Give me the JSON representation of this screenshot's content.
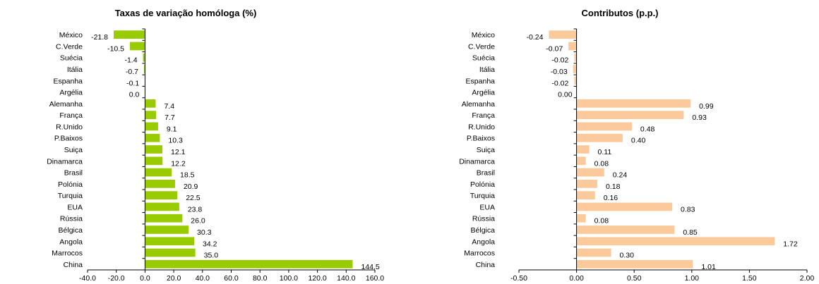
{
  "chart_data": [
    {
      "type": "bar",
      "orientation": "horizontal",
      "title": "Taxas de variação homóloga (%)",
      "categories": [
        "México",
        "C.Verde",
        "Suécia",
        "Itália",
        "Espanha",
        "Argélia",
        "Alemanha",
        "França",
        "R.Unido",
        "P.Baixos",
        "Suiça",
        "Dinamarca",
        "Brasil",
        "Polónia",
        "Turquia",
        "EUA",
        "Rússia",
        "Bélgica",
        "Angola",
        "Marrocos",
        "China"
      ],
      "values": [
        -21.8,
        -10.5,
        -1.4,
        -0.7,
        -0.1,
        0.0,
        7.4,
        7.7,
        9.1,
        10.3,
        12.1,
        12.2,
        18.5,
        20.9,
        22.5,
        23.8,
        26.0,
        30.3,
        34.2,
        35.0,
        144.5
      ],
      "value_labels": [
        "-21.8",
        "-10.5",
        "-1.4",
        "-0.7",
        "-0.1",
        "0.0",
        "7.4",
        "7.7",
        "9.1",
        "10.3",
        "12.1",
        "12.2",
        "18.5",
        "20.9",
        "22.5",
        "23.8",
        "26.0",
        "30.3",
        "34.2",
        "35.0",
        "144.5"
      ],
      "xlim": [
        -40,
        160
      ],
      "xticks": [
        -40,
        -20,
        0,
        20,
        40,
        60,
        80,
        100,
        120,
        140,
        160
      ],
      "xtick_labels": [
        "-40.0",
        "-20.0",
        "0.0",
        "20.0",
        "40.0",
        "60.0",
        "80.0",
        "100.0",
        "120.0",
        "140.0",
        "160.0"
      ],
      "bar_color": "#99cc00",
      "grid": false
    },
    {
      "type": "bar",
      "orientation": "horizontal",
      "title": "Contributos (p.p.)",
      "categories": [
        "México",
        "C.Verde",
        "Suécia",
        "Itália",
        "Espanha",
        "Argélia",
        "Alemanha",
        "França",
        "R.Unido",
        "P.Baixos",
        "Suiça",
        "Dinamarca",
        "Brasil",
        "Polónia",
        "Turquia",
        "EUA",
        "Rússia",
        "Bélgica",
        "Angola",
        "Marrocos",
        "China"
      ],
      "values": [
        -0.24,
        -0.07,
        -0.02,
        -0.03,
        -0.02,
        0.0,
        0.99,
        0.93,
        0.48,
        0.4,
        0.11,
        0.08,
        0.24,
        0.18,
        0.16,
        0.83,
        0.08,
        0.85,
        1.72,
        0.3,
        1.01
      ],
      "value_labels": [
        "-0.24",
        "-0.07",
        "-0.02",
        "-0.03",
        "-0.02",
        "0.00",
        "0.99",
        "0.93",
        "0.48",
        "0.40",
        "0.11",
        "0.08",
        "0.24",
        "0.18",
        "0.16",
        "0.83",
        "0.08",
        "0.85",
        "1.72",
        "0.30",
        "1.01"
      ],
      "xlim": [
        -0.5,
        2.0
      ],
      "xticks": [
        -0.5,
        0,
        0.5,
        1.0,
        1.5,
        2.0
      ],
      "xtick_labels": [
        "-0.50",
        "0.00",
        "0.50",
        "1.00",
        "1.50",
        "2.00"
      ],
      "bar_color": "#fcc99b",
      "grid": false
    }
  ]
}
